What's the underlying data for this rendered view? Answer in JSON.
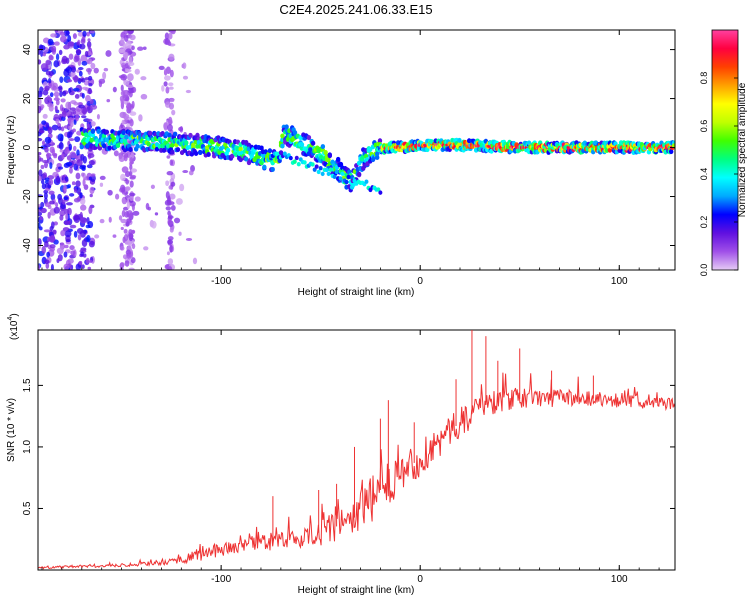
{
  "title": "C2E4.2025.241.06.33.E15",
  "chart_data": [
    {
      "type": "heatmap",
      "xlabel": "Height of straight line (km)",
      "ylabel": "Frequency (Hz)",
      "xlim": [
        -192,
        128
      ],
      "ylim": [
        -50,
        48
      ],
      "x_ticks": [
        "-100",
        "0",
        "100"
      ],
      "x_tick_values": [
        -100,
        0,
        100
      ],
      "y_ticks": [
        "-40",
        "-20",
        "0",
        "20",
        "40"
      ],
      "y_tick_values": [
        -40,
        -20,
        0,
        20,
        40
      ],
      "colorbar": {
        "label": "Normalized spectral amplitude",
        "range": [
          0,
          1
        ],
        "ticks": [
          "0.0",
          "0.2",
          "0.4",
          "0.6",
          "0.8"
        ],
        "tick_values": [
          0.0,
          0.2,
          0.4,
          0.6,
          0.8
        ],
        "colors": [
          "#e6ccf5",
          "#a050e8",
          "#6010e0",
          "#0000ff",
          "#00aaff",
          "#00ffff",
          "#00ff80",
          "#40ff00",
          "#c0ff00",
          "#ffff00",
          "#ffa000",
          "#ff4000",
          "#ff0040",
          "#ff40a0"
        ]
      },
      "ridge": {
        "x": [
          -168,
          -150,
          -130,
          -110,
          -90,
          -80,
          -72,
          -68,
          -62,
          -55,
          -48,
          -42,
          -38,
          -34,
          -30,
          -25,
          -20,
          -10,
          0,
          20,
          50,
          80,
          110,
          128
        ],
        "freq": [
          4,
          3,
          2,
          1,
          -1,
          -4,
          -6,
          6,
          3,
          0,
          -4,
          -8,
          -12,
          -14,
          -6,
          -2,
          0,
          0,
          1,
          1,
          0,
          0,
          0,
          0
        ]
      }
    },
    {
      "type": "line",
      "xlabel": "Height of straight line (km)",
      "ylabel": "SNR (10 * v/v)",
      "multiplier": "(x10",
      "multiplier_exp": "4",
      "xlim": [
        -192,
        128
      ],
      "ylim": [
        0,
        1.95
      ],
      "x_ticks": [
        "-100",
        "0",
        "100"
      ],
      "x_tick_values": [
        -100,
        0,
        100
      ],
      "y_ticks": [
        "0.5",
        "1.0",
        "1.5"
      ],
      "y_tick_values": [
        0.5,
        1.0,
        1.5
      ],
      "series": [
        {
          "name": "SNR",
          "color": "#ee3333",
          "trend_x": [
            -192,
            -160,
            -130,
            -115,
            -100,
            -80,
            -60,
            -45,
            -30,
            -20,
            -10,
            0,
            10,
            20,
            25,
            30,
            40,
            60,
            80,
            100,
            115,
            128
          ],
          "trend_y": [
            0.02,
            0.03,
            0.06,
            0.1,
            0.17,
            0.22,
            0.26,
            0.33,
            0.45,
            0.65,
            0.8,
            0.9,
            1.05,
            1.2,
            1.25,
            1.33,
            1.38,
            1.4,
            1.4,
            1.38,
            1.36,
            1.35
          ],
          "noise": [
            0.01,
            0.01,
            0.02,
            0.04,
            0.06,
            0.07,
            0.08,
            0.12,
            0.2,
            0.2,
            0.17,
            0.15,
            0.14,
            0.12,
            0.11,
            0.11,
            0.1,
            0.08,
            0.07,
            0.06,
            0.05,
            0.05
          ],
          "peaks_x": [
            -74,
            -51,
            -42,
            -33,
            -20,
            -16,
            -3,
            18,
            26,
            33,
            39,
            50,
            66,
            87
          ],
          "peaks_y": [
            0.6,
            0.65,
            0.7,
            1.0,
            1.23,
            1.38,
            1.2,
            1.55,
            1.95,
            1.9,
            1.7,
            1.8,
            1.62,
            1.58
          ]
        }
      ]
    }
  ]
}
